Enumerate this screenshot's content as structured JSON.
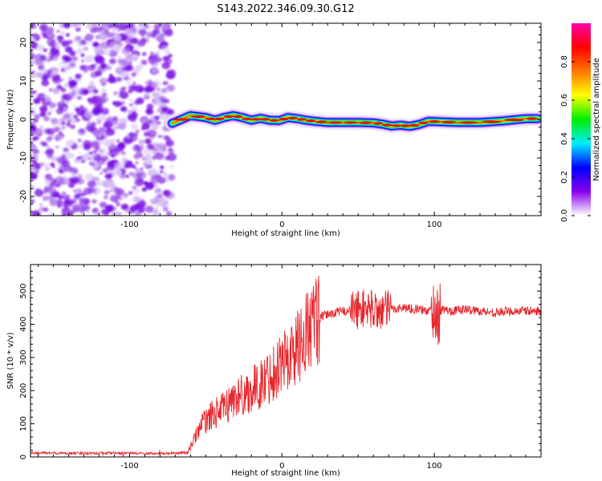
{
  "title": "S143.2022.346.09.30.G12",
  "chart_data": [
    {
      "type": "heatmap",
      "xlabel": "Height of straight line (km)",
      "ylabel": "Frequency (Hz)",
      "xlim": [
        -165,
        170
      ],
      "ylim": [
        -25,
        25
      ],
      "x_ticks": [
        -100,
        0,
        100
      ],
      "y_ticks": [
        -20,
        -10,
        0,
        10,
        20
      ],
      "noise_region_x": [
        -165,
        -72
      ],
      "ridge": {
        "x": [
          -72,
          -60,
          -50,
          -44,
          -38,
          -32,
          -26,
          -20,
          -14,
          -8,
          -2,
          4,
          10,
          16,
          22,
          30,
          40,
          50,
          60,
          66,
          72,
          78,
          84,
          90,
          96,
          104,
          115,
          130,
          145,
          160,
          168
        ],
        "y": [
          -1,
          1,
          0.5,
          -0.2,
          0.5,
          1,
          0.5,
          -0.2,
          0.3,
          -0.2,
          -0.3,
          0.5,
          0.2,
          -0.2,
          -0.5,
          -0.8,
          -0.8,
          -0.8,
          -0.9,
          -1.2,
          -1.7,
          -1.5,
          -1.8,
          -1.3,
          -0.5,
          -0.6,
          -0.8,
          -0.8,
          -0.4,
          0.2,
          0.2
        ]
      }
    },
    {
      "type": "line",
      "xlabel": "Height of straight line (km)",
      "ylabel": "SNR (10 * v/v)",
      "xlim": [
        -165,
        170
      ],
      "ylim": [
        0,
        580
      ],
      "x_ticks": [
        -100,
        0,
        100
      ],
      "y_ticks": [
        0,
        100,
        200,
        300,
        400,
        500
      ],
      "series": [
        {
          "color": "#e8262b",
          "x": [
            -165,
            -140,
            -110,
            -80,
            -62,
            -58,
            -54,
            -50,
            -45,
            -40,
            -35,
            -30,
            -25,
            -20,
            -15,
            -10,
            -5,
            0,
            5,
            10,
            15,
            20,
            25,
            30,
            40,
            50,
            55,
            60,
            65,
            70,
            80,
            90,
            95,
            100,
            102,
            105,
            110,
            120,
            130,
            140,
            150,
            160,
            170
          ],
          "values": [
            12,
            11,
            12,
            10,
            12,
            50,
            90,
            110,
            130,
            140,
            160,
            180,
            190,
            200,
            215,
            235,
            260,
            290,
            300,
            330,
            370,
            400,
            420,
            430,
            440,
            445,
            450,
            445,
            440,
            445,
            450,
            445,
            440,
            445,
            420,
            445,
            440,
            445,
            440,
            435,
            440,
            440,
            440
          ]
        }
      ]
    }
  ],
  "colorbar": {
    "label": "Normalized spectral amplitude",
    "range": [
      0,
      1
    ],
    "ticks": [
      "0.0",
      "0.2",
      "0.4",
      "0.6",
      "0.8"
    ],
    "colors": [
      "#ffffff",
      "#8800ee",
      "#0000ff",
      "#00eeff",
      "#00ee00",
      "#ffff00",
      "#ff7700",
      "#ff0000",
      "#ff00aa"
    ]
  }
}
